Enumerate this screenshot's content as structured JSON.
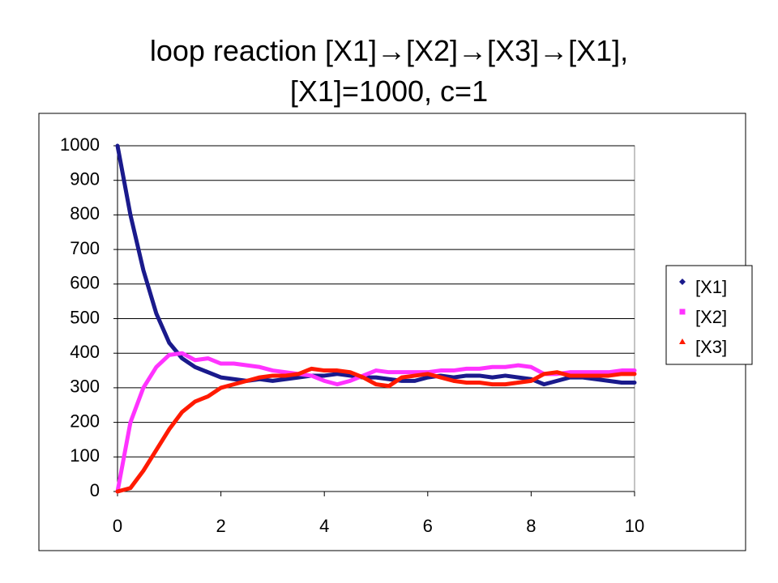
{
  "chart_data": {
    "type": "line",
    "title": "loop reaction [X1]→[X2]→[X3]→[X1], [X1]=1000, c=1",
    "x": [
      0,
      0.25,
      0.5,
      0.75,
      1,
      1.25,
      1.5,
      1.75,
      2,
      2.25,
      2.5,
      2.75,
      3,
      3.25,
      3.5,
      3.75,
      4,
      4.25,
      4.5,
      4.75,
      5,
      5.25,
      5.5,
      5.75,
      6,
      6.25,
      6.5,
      6.75,
      7,
      7.25,
      7.5,
      7.75,
      8,
      8.25,
      8.5,
      8.75,
      9,
      9.25,
      9.5,
      9.75,
      10
    ],
    "series": [
      {
        "name": "[X1]",
        "color": "#1a1a8c",
        "values": [
          1000,
          800,
          640,
          515,
          430,
          385,
          360,
          345,
          330,
          325,
          320,
          325,
          320,
          325,
          330,
          335,
          335,
          340,
          335,
          330,
          330,
          325,
          320,
          320,
          330,
          335,
          330,
          335,
          335,
          330,
          335,
          330,
          325,
          310,
          320,
          330,
          330,
          325,
          320,
          315,
          315
        ]
      },
      {
        "name": "[X2]",
        "color": "#ff33ff",
        "values": [
          0,
          200,
          300,
          360,
          395,
          400,
          380,
          385,
          370,
          370,
          365,
          360,
          350,
          345,
          340,
          335,
          320,
          310,
          320,
          335,
          350,
          345,
          345,
          345,
          345,
          350,
          350,
          355,
          355,
          360,
          360,
          365,
          360,
          340,
          340,
          345,
          345,
          345,
          345,
          350,
          350
        ]
      },
      {
        "name": "[X3]",
        "color": "#ff1a00",
        "values": [
          0,
          10,
          60,
          120,
          180,
          230,
          260,
          275,
          300,
          310,
          320,
          330,
          335,
          335,
          340,
          355,
          350,
          350,
          345,
          330,
          310,
          305,
          330,
          335,
          340,
          330,
          320,
          315,
          315,
          310,
          310,
          315,
          320,
          340,
          345,
          335,
          335,
          335,
          335,
          340,
          340
        ]
      }
    ],
    "xlim": [
      0,
      10
    ],
    "xticks": [
      0,
      2,
      4,
      6,
      8,
      10
    ],
    "ylim": [
      0,
      1000
    ],
    "yticks": [
      0,
      100,
      200,
      300,
      400,
      500,
      600,
      700,
      800,
      900,
      1000
    ],
    "grid": true,
    "legend": "right"
  }
}
